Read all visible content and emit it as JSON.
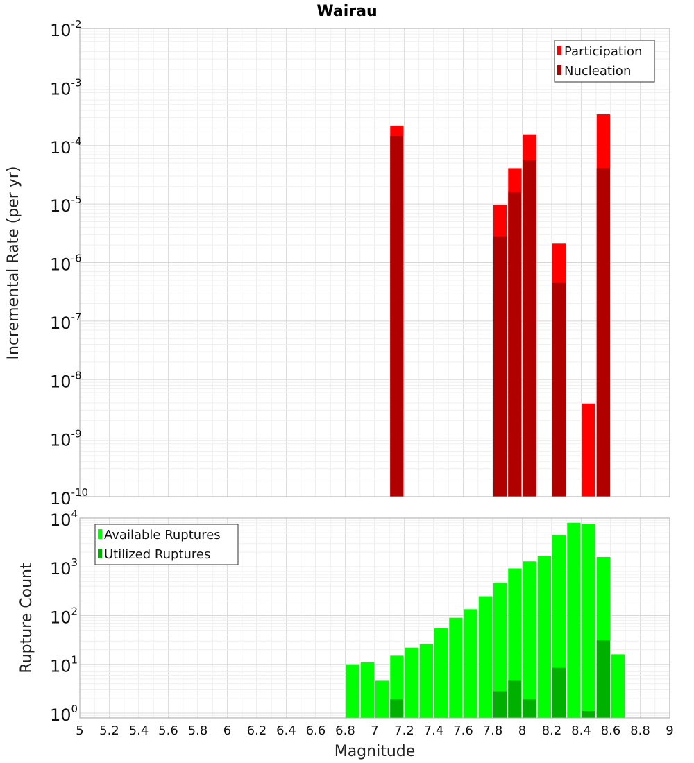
{
  "chart_data": [
    {
      "type": "bar",
      "title": "Wairau",
      "xlabel": "",
      "ylabel": "Incremental Rate (per yr)",
      "yscale": "log",
      "ylim_exp": [
        -10,
        -2
      ],
      "ytick_exponents": [
        -10,
        -9,
        -8,
        -7,
        -6,
        -5,
        -4,
        -3,
        -2
      ],
      "xlim": [
        5,
        9
      ],
      "bin_width": 0.1,
      "legend": "top-right",
      "colors": {
        "Participation": "#ff0000",
        "Nucleation": "#b00000"
      },
      "series": [
        {
          "name": "Participation",
          "x": [
            7.15,
            7.85,
            7.95,
            8.05,
            8.25,
            8.45,
            8.55
          ],
          "values": [
            0.00022,
            9.5e-06,
            4.1e-05,
            0.000155,
            2.1e-06,
            3.9e-09,
            0.00034
          ]
        },
        {
          "name": "Nucleation",
          "x": [
            7.15,
            7.85,
            7.95,
            8.05,
            8.25,
            8.45,
            8.55
          ],
          "values": [
            0.000145,
            2.8e-06,
            1.6e-05,
            5.6e-05,
            4.5e-07,
            0,
            4.1e-05
          ]
        }
      ]
    },
    {
      "type": "bar",
      "title": "",
      "xlabel": "Magnitude",
      "ylabel": "Rupture Count",
      "yscale": "log",
      "ylim_exp": [
        -0.1,
        4
      ],
      "ytick_exponents": [
        0,
        1,
        2,
        3,
        4
      ],
      "xlim": [
        5,
        9
      ],
      "xticks": [
        "5",
        "5.2",
        "5.4",
        "5.6",
        "5.8",
        "6",
        "6.2",
        "6.4",
        "6.6",
        "6.8",
        "7",
        "7.2",
        "7.4",
        "7.6",
        "7.8",
        "8",
        "8.2",
        "8.4",
        "8.6",
        "8.8",
        "9"
      ],
      "bin_width": 0.1,
      "legend": "top-left",
      "colors": {
        "Available Ruptures": "#00ff00",
        "Utilized Ruptures": "#00b000"
      },
      "series": [
        {
          "name": "Available Ruptures",
          "x": [
            6.85,
            6.95,
            7.05,
            7.15,
            7.25,
            7.35,
            7.45,
            7.55,
            7.65,
            7.75,
            7.85,
            7.95,
            8.05,
            8.15,
            8.25,
            8.35,
            8.45,
            8.55,
            8.65
          ],
          "values": [
            10,
            11,
            4.6,
            15,
            22,
            26,
            55,
            90,
            135,
            250,
            470,
            930,
            1300,
            1700,
            4500,
            8000,
            7700,
            1600,
            16
          ]
        },
        {
          "name": "Utilized Ruptures",
          "x": [
            7.15,
            7.85,
            7.95,
            8.05,
            8.25,
            8.45,
            8.55
          ],
          "values": [
            1.9,
            2.8,
            4.6,
            1.9,
            8.5,
            1.1,
            31
          ]
        }
      ]
    }
  ]
}
